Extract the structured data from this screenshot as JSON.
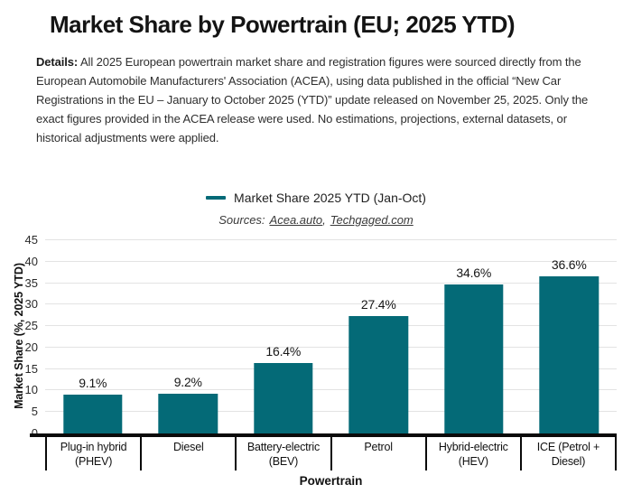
{
  "title": "Market Share by Powertrain (EU; 2025 YTD)",
  "details": {
    "label": "Details:",
    "text": " All 2025 European powertrain market share and registration figures were sourced directly from the European Automobile Manufacturers' Association (ACEA), using data published in the official “New Car Registrations in the EU – January to October 2025 (YTD)” update released on November 25, 2025. Only the exact figures provided in the ACEA release were used. No estimations, projections, external datasets, or historical adjustments were applied."
  },
  "legend": {
    "label": "Market Share 2025 YTD (Jan-Oct)",
    "swatch_color": "#046a77"
  },
  "sources": {
    "prefix": "Sources:",
    "separator": ",",
    "links": [
      "Acea.auto",
      "Techgaged.com"
    ]
  },
  "chart_data": {
    "type": "bar",
    "title": "Market Share by Powertrain (EU; 2025 YTD)",
    "series_name": "Market Share 2025 YTD (Jan-Oct)",
    "categories": [
      "Plug-in hybrid (PHEV)",
      "Diesel",
      "Battery-electric (BEV)",
      "Petrol",
      "Hybrid-electric (HEV)",
      "ICE (Petrol + Diesel)"
    ],
    "values": [
      9.1,
      9.2,
      16.4,
      27.4,
      34.6,
      36.6
    ],
    "value_labels": [
      "9.1%",
      "9.2%",
      "16.4%",
      "27.4%",
      "34.6%",
      "36.6%"
    ],
    "xlabel": "Powertrain",
    "ylabel": "Market Share (%, 2025 YTD)",
    "ylim": [
      0,
      45
    ],
    "yticks": [
      0,
      5,
      10,
      15,
      20,
      25,
      30,
      35,
      40,
      45
    ],
    "grid": true,
    "legend_position": "top-center",
    "bar_color": "#046a77"
  },
  "colors": {
    "bar": "#046a77",
    "gridline": "#e3e3e3",
    "axis": "#0a0a0a",
    "text": "#1f1f1f"
  }
}
